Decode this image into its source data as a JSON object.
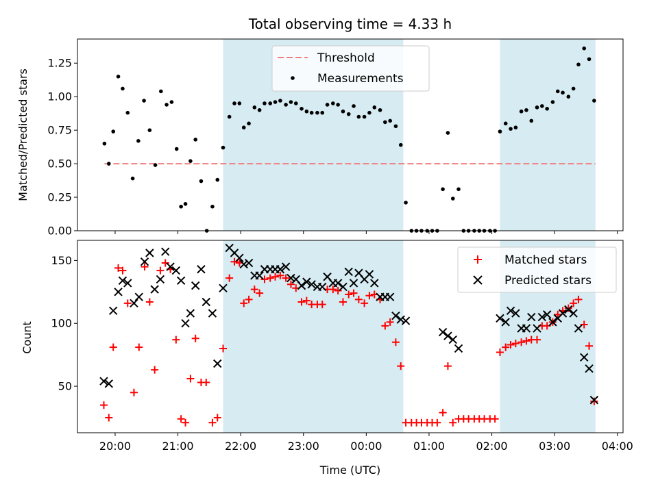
{
  "chart_data": {
    "type": "scatter",
    "title": "Total observing time = 4.33 h",
    "xlabel": "Time (UTC)",
    "x_ticks": [
      "20:00",
      "21:00",
      "22:00",
      "23:00",
      "00:00",
      "01:00",
      "02:00",
      "03:00",
      "04:00"
    ],
    "x_range_hours": [
      19.4,
      28.09
    ],
    "colors": {
      "threshold": "#f08080",
      "measurements": "#000000",
      "matched": "#ff0000",
      "predicted": "#000000",
      "shade": "#add8e6"
    },
    "shaded_intervals_hours": [
      [
        21.72,
        24.59
      ],
      [
        26.13,
        27.65
      ]
    ],
    "panels": [
      {
        "ylabel": "Matched/Predicted stars",
        "ylim": [
          0,
          1.43
        ],
        "y_ticks": [
          "0.00",
          "0.25",
          "0.50",
          "0.75",
          "1.00",
          "1.25"
        ],
        "legend": [
          "Threshold",
          "Measurements"
        ],
        "threshold": {
          "value": 0.5,
          "x": [
            19.83,
            27.65
          ]
        },
        "measurements": [
          [
            19.83,
            0.65
          ],
          [
            19.9,
            0.5
          ],
          [
            19.97,
            0.74
          ],
          [
            20.05,
            1.15
          ],
          [
            20.12,
            1.06
          ],
          [
            20.2,
            0.88
          ],
          [
            20.28,
            0.39
          ],
          [
            20.37,
            0.67
          ],
          [
            20.46,
            0.97
          ],
          [
            20.55,
            0.75
          ],
          [
            20.64,
            0.49
          ],
          [
            20.73,
            1.04
          ],
          [
            20.82,
            0.94
          ],
          [
            20.9,
            0.96
          ],
          [
            20.98,
            0.61
          ],
          [
            21.05,
            0.18
          ],
          [
            21.12,
            0.2
          ],
          [
            21.2,
            0.52
          ],
          [
            21.28,
            0.68
          ],
          [
            21.37,
            0.37
          ],
          [
            21.46,
            0.0
          ],
          [
            21.55,
            0.18
          ],
          [
            21.63,
            0.38
          ],
          [
            21.72,
            0.62
          ],
          [
            21.82,
            0.85
          ],
          [
            21.9,
            0.95
          ],
          [
            21.98,
            0.95
          ],
          [
            22.05,
            0.77
          ],
          [
            22.13,
            0.8
          ],
          [
            22.22,
            0.92
          ],
          [
            22.3,
            0.9
          ],
          [
            22.38,
            0.95
          ],
          [
            22.47,
            0.95
          ],
          [
            22.55,
            0.96
          ],
          [
            22.63,
            0.97
          ],
          [
            22.72,
            0.94
          ],
          [
            22.8,
            0.96
          ],
          [
            22.88,
            0.95
          ],
          [
            22.97,
            0.91
          ],
          [
            23.05,
            0.89
          ],
          [
            23.13,
            0.88
          ],
          [
            23.22,
            0.88
          ],
          [
            23.3,
            0.88
          ],
          [
            23.38,
            0.94
          ],
          [
            23.47,
            0.95
          ],
          [
            23.55,
            0.94
          ],
          [
            23.63,
            0.89
          ],
          [
            23.72,
            0.87
          ],
          [
            23.8,
            0.93
          ],
          [
            23.88,
            0.85
          ],
          [
            23.97,
            0.85
          ],
          [
            24.05,
            0.88
          ],
          [
            24.13,
            0.92
          ],
          [
            24.22,
            0.9
          ],
          [
            24.3,
            0.81
          ],
          [
            24.38,
            0.82
          ],
          [
            24.47,
            0.78
          ],
          [
            24.55,
            0.64
          ],
          [
            24.63,
            0.21
          ],
          [
            24.72,
            0.0
          ],
          [
            24.8,
            0.0
          ],
          [
            24.88,
            0.0
          ],
          [
            24.97,
            0.0
          ],
          [
            25.05,
            0.0
          ],
          [
            25.13,
            0.0
          ],
          [
            25.22,
            0.31
          ],
          [
            25.3,
            0.73
          ],
          [
            25.38,
            0.24
          ],
          [
            25.47,
            0.31
          ],
          [
            25.55,
            0.0
          ],
          [
            25.63,
            0.0
          ],
          [
            25.72,
            0.0
          ],
          [
            25.8,
            0.0
          ],
          [
            25.88,
            0.0
          ],
          [
            25.97,
            0.0
          ],
          [
            26.05,
            0.0
          ],
          [
            26.13,
            0.74
          ],
          [
            26.22,
            0.8
          ],
          [
            26.3,
            0.76
          ],
          [
            26.38,
            0.77
          ],
          [
            26.47,
            0.89
          ],
          [
            26.55,
            0.9
          ],
          [
            26.63,
            0.82
          ],
          [
            26.72,
            0.92
          ],
          [
            26.8,
            0.93
          ],
          [
            26.88,
            0.91
          ],
          [
            26.97,
            0.96
          ],
          [
            27.05,
            1.04
          ],
          [
            27.13,
            1.03
          ],
          [
            27.22,
            1.0
          ],
          [
            27.3,
            1.06
          ],
          [
            27.38,
            1.24
          ],
          [
            27.47,
            1.36
          ],
          [
            27.55,
            1.28
          ],
          [
            27.63,
            0.97
          ]
        ]
      },
      {
        "ylabel": "Count",
        "ylim": [
          13,
          166
        ],
        "y_ticks": [
          "50",
          "100",
          "150"
        ],
        "legend": [
          "Matched stars",
          "Predicted stars"
        ],
        "matched": [
          [
            19.82,
            35
          ],
          [
            19.9,
            25
          ],
          [
            19.97,
            81
          ],
          [
            20.05,
            144
          ],
          [
            20.12,
            142
          ],
          [
            20.2,
            116
          ],
          [
            20.3,
            45
          ],
          [
            20.38,
            81
          ],
          [
            20.47,
            145
          ],
          [
            20.55,
            117
          ],
          [
            20.63,
            63
          ],
          [
            20.72,
            142
          ],
          [
            20.8,
            148
          ],
          [
            20.88,
            143
          ],
          [
            20.97,
            87
          ],
          [
            21.05,
            24
          ],
          [
            21.12,
            21
          ],
          [
            21.2,
            56
          ],
          [
            21.28,
            88
          ],
          [
            21.37,
            53
          ],
          [
            21.45,
            53
          ],
          [
            21.55,
            21
          ],
          [
            21.63,
            25
          ],
          [
            21.72,
            80
          ],
          [
            21.82,
            136
          ],
          [
            21.9,
            149
          ],
          [
            21.98,
            148
          ],
          [
            22.05,
            116
          ],
          [
            22.13,
            119
          ],
          [
            22.22,
            127
          ],
          [
            22.3,
            124
          ],
          [
            22.38,
            135
          ],
          [
            22.47,
            136
          ],
          [
            22.55,
            137
          ],
          [
            22.63,
            138
          ],
          [
            22.72,
            136
          ],
          [
            22.8,
            131
          ],
          [
            22.88,
            128
          ],
          [
            22.97,
            117
          ],
          [
            23.05,
            118
          ],
          [
            23.13,
            115
          ],
          [
            23.22,
            115
          ],
          [
            23.3,
            115
          ],
          [
            23.38,
            127
          ],
          [
            23.47,
            127
          ],
          [
            23.55,
            126
          ],
          [
            23.63,
            117
          ],
          [
            23.72,
            123
          ],
          [
            23.8,
            124
          ],
          [
            23.88,
            119
          ],
          [
            23.97,
            116
          ],
          [
            24.05,
            122
          ],
          [
            24.13,
            123
          ],
          [
            24.22,
            119
          ],
          [
            24.3,
            98
          ],
          [
            24.38,
            101
          ],
          [
            24.47,
            85
          ],
          [
            24.55,
            66
          ],
          [
            24.63,
            21
          ],
          [
            24.72,
            21
          ],
          [
            24.8,
            21
          ],
          [
            24.88,
            21
          ],
          [
            24.97,
            21
          ],
          [
            25.05,
            21
          ],
          [
            25.13,
            21
          ],
          [
            25.22,
            29
          ],
          [
            25.3,
            66
          ],
          [
            25.38,
            21
          ],
          [
            25.47,
            24
          ],
          [
            25.55,
            24
          ],
          [
            25.63,
            24
          ],
          [
            25.72,
            24
          ],
          [
            25.8,
            24
          ],
          [
            25.88,
            24
          ],
          [
            25.97,
            24
          ],
          [
            26.05,
            24
          ],
          [
            26.13,
            77
          ],
          [
            26.22,
            81
          ],
          [
            26.3,
            83
          ],
          [
            26.38,
            84
          ],
          [
            26.47,
            85
          ],
          [
            26.55,
            86
          ],
          [
            26.63,
            87
          ],
          [
            26.72,
            87
          ],
          [
            26.8,
            98
          ],
          [
            26.88,
            98
          ],
          [
            26.97,
            101
          ],
          [
            27.05,
            107
          ],
          [
            27.13,
            110
          ],
          [
            27.22,
            112
          ],
          [
            27.3,
            116
          ],
          [
            27.38,
            119
          ],
          [
            27.47,
            99
          ],
          [
            27.55,
            82
          ],
          [
            27.63,
            38
          ]
        ],
        "predicted": [
          [
            19.82,
            54
          ],
          [
            19.9,
            52
          ],
          [
            19.97,
            110
          ],
          [
            20.05,
            125
          ],
          [
            20.12,
            134
          ],
          [
            20.2,
            132
          ],
          [
            20.3,
            116
          ],
          [
            20.38,
            121
          ],
          [
            20.47,
            149
          ],
          [
            20.55,
            156
          ],
          [
            20.63,
            127
          ],
          [
            20.72,
            135
          ],
          [
            20.8,
            157
          ],
          [
            20.88,
            145
          ],
          [
            20.97,
            142
          ],
          [
            21.05,
            134
          ],
          [
            21.12,
            100
          ],
          [
            21.2,
            108
          ],
          [
            21.28,
            130
          ],
          [
            21.37,
            143
          ],
          [
            21.45,
            117
          ],
          [
            21.55,
            108
          ],
          [
            21.63,
            68
          ],
          [
            21.72,
            128
          ],
          [
            21.82,
            160
          ],
          [
            21.9,
            156
          ],
          [
            21.98,
            152
          ],
          [
            22.05,
            147
          ],
          [
            22.13,
            148
          ],
          [
            22.22,
            138
          ],
          [
            22.3,
            138
          ],
          [
            22.38,
            143
          ],
          [
            22.47,
            143
          ],
          [
            22.55,
            143
          ],
          [
            22.63,
            143
          ],
          [
            22.72,
            145
          ],
          [
            22.8,
            136
          ],
          [
            22.88,
            135
          ],
          [
            22.97,
            130
          ],
          [
            23.05,
            133
          ],
          [
            23.13,
            131
          ],
          [
            23.22,
            129
          ],
          [
            23.3,
            129
          ],
          [
            23.38,
            137
          ],
          [
            23.47,
            132
          ],
          [
            23.55,
            132
          ],
          [
            23.63,
            129
          ],
          [
            23.72,
            141
          ],
          [
            23.8,
            132
          ],
          [
            23.88,
            140
          ],
          [
            23.97,
            135
          ],
          [
            24.05,
            139
          ],
          [
            24.13,
            132
          ],
          [
            24.22,
            121
          ],
          [
            24.3,
            121
          ],
          [
            24.38,
            121
          ],
          [
            24.47,
            106
          ],
          [
            24.55,
            103
          ],
          [
            24.63,
            102
          ],
          [
            25.22,
            93
          ],
          [
            25.3,
            90
          ],
          [
            25.38,
            87
          ],
          [
            25.47,
            80
          ],
          [
            26.13,
            104
          ],
          [
            26.22,
            101
          ],
          [
            26.3,
            110
          ],
          [
            26.38,
            108
          ],
          [
            26.47,
            96
          ],
          [
            26.55,
            96
          ],
          [
            26.63,
            105
          ],
          [
            26.72,
            96
          ],
          [
            26.8,
            105
          ],
          [
            26.88,
            107
          ],
          [
            26.97,
            101
          ],
          [
            27.05,
            104
          ],
          [
            27.13,
            108
          ],
          [
            27.22,
            111
          ],
          [
            27.3,
            108
          ],
          [
            27.38,
            96
          ],
          [
            27.47,
            73
          ],
          [
            27.55,
            64
          ],
          [
            27.63,
            39
          ]
        ]
      }
    ]
  }
}
